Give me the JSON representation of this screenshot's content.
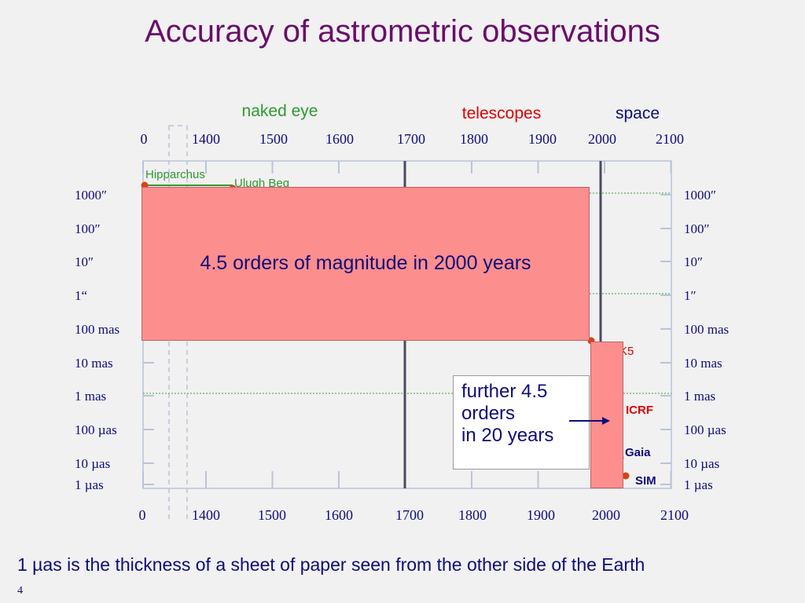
{
  "title": "Accuracy of astrometric observations",
  "footnote": "1 µas is the thickness of a sheet of paper seen from the other side of the Earth",
  "page_number": "4",
  "colors": {
    "title": "#6a0d6a",
    "text": "#0d0d7a",
    "naked_eye": "#2e9a2e",
    "telescopes": "#e00000",
    "space": "#0d0d7a",
    "highlight": "#fd8e8e",
    "point": "#d84315"
  },
  "eras": [
    {
      "label": "naked eye",
      "color": "#2e9a2e"
    },
    {
      "label": "telescopes",
      "color": "#e00000"
    },
    {
      "label": "space",
      "color": "#0d0d7a"
    }
  ],
  "banner_text": "4.5 orders of magnitude in 2000 years",
  "callout": {
    "lines": [
      "further 4.5",
      "orders",
      "in 20 years"
    ]
  },
  "chart_data": {
    "type": "scatter",
    "title": "Accuracy of astrometric observations",
    "x_ticks": [
      "0",
      "1400",
      "1500",
      "1600",
      "1700",
      "1800",
      "1900",
      "2000",
      "2100"
    ],
    "y_ticks_left": [
      "1000″",
      "100″",
      "10″",
      "1“",
      "100 mas",
      "10 mas",
      "1 mas",
      "100 µas",
      "10 µas",
      "1 µas"
    ],
    "y_ticks_right": [
      "1000″",
      "100″",
      "10″",
      "1″",
      "100 mas",
      "10 mas",
      "1 mas",
      "100 µas",
      "10 µas",
      "1 µas"
    ],
    "y_scale": "log",
    "x_axis_break": "between 0 and 1400",
    "era_dividers": [
      1700,
      1990
    ],
    "points": [
      {
        "label": "Hipparchus",
        "x": 0,
        "y": "1000″",
        "color": "#2e9a2e"
      },
      {
        "label": "Ulugh Beg",
        "x": 1440,
        "y": "1000″",
        "color": "#2e9a2e"
      },
      {
        "label": "K5",
        "x": 1997,
        "y": "100 mas",
        "color": "#e00000"
      },
      {
        "label": "ICRF",
        "x": 2005,
        "y": "1 mas",
        "color": "#e00000"
      },
      {
        "label": "Gaia",
        "x": 2015,
        "y": "10 µas",
        "color": "#0d0d7a"
      },
      {
        "label": "SIM",
        "x": 2020,
        "y": "1 µas",
        "color": "#0d0d7a"
      }
    ]
  }
}
